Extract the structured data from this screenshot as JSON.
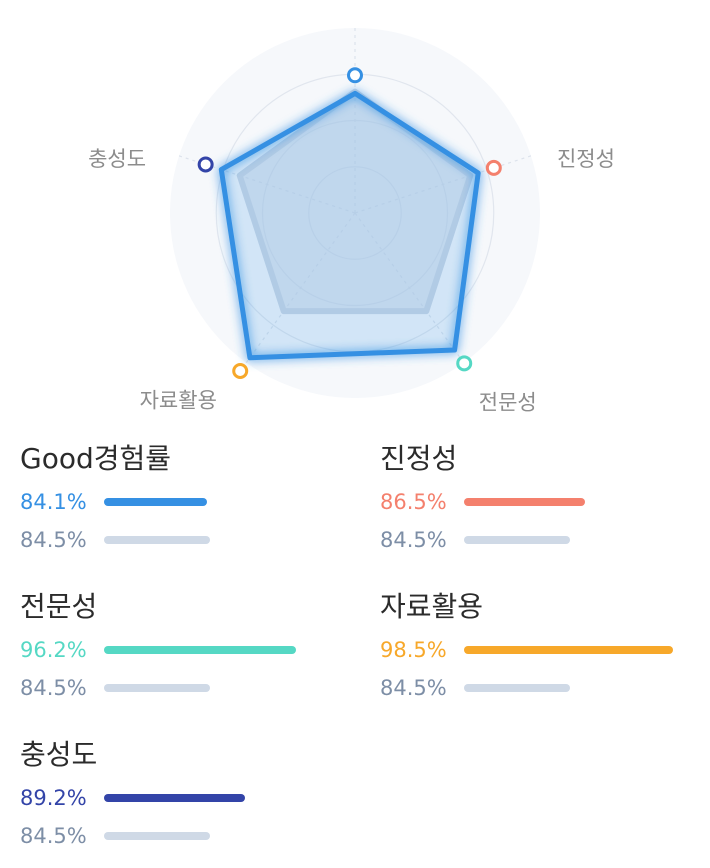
{
  "chart_data": {
    "type": "radar",
    "axes": [
      "Good경험률",
      "진정성",
      "전문성",
      "자료활용",
      "충성도"
    ],
    "series": [
      {
        "values": [
          84.1,
          86.5,
          96.2,
          98.5,
          89.2
        ],
        "color": "#3590e3"
      },
      {
        "values": [
          84.5,
          84.5,
          84.5,
          84.5,
          84.5
        ],
        "color": "#cdd7e5"
      }
    ],
    "axis_colors": [
      "#3590e3",
      "#f4806d",
      "#55d8c4",
      "#f7a82a",
      "#3344a8"
    ],
    "grid": true,
    "grid_rings": 3
  },
  "metrics": [
    {
      "title": "Good경험률",
      "value_label": "84.1%",
      "value": 84.1,
      "avg_label": "84.5%",
      "avg": 84.5,
      "color": "#3590e3"
    },
    {
      "title": "진정성",
      "value_label": "86.5%",
      "value": 86.5,
      "avg_label": "84.5%",
      "avg": 84.5,
      "color": "#f4806d"
    },
    {
      "title": "전문성",
      "value_label": "96.2%",
      "value": 96.2,
      "avg_label": "84.5%",
      "avg": 84.5,
      "color": "#55d8c4"
    },
    {
      "title": "자료활용",
      "value_label": "98.5%",
      "value": 98.5,
      "avg_label": "84.5%",
      "avg": 84.5,
      "color": "#f7a82a"
    },
    {
      "title": "충성도",
      "value_label": "89.2%",
      "value": 89.2,
      "avg_label": "84.5%",
      "avg": 84.5,
      "color": "#3344a8"
    }
  ]
}
